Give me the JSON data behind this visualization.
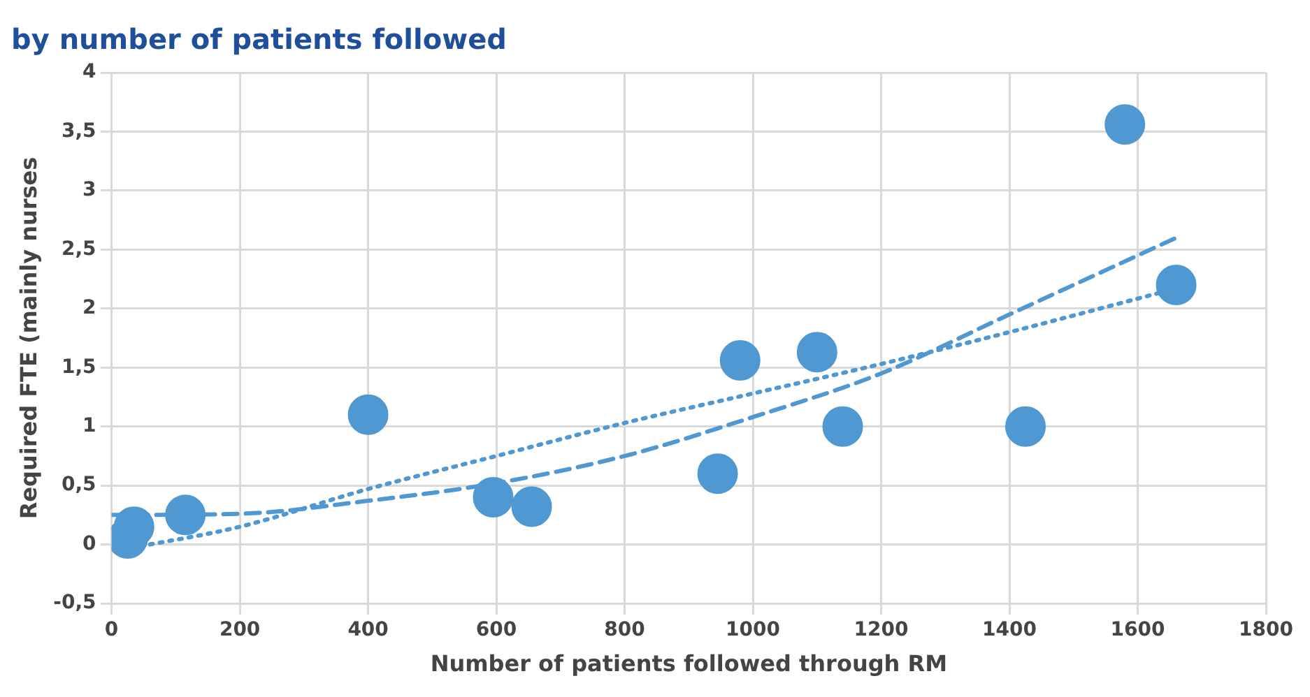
{
  "chart_data": {
    "type": "scatter",
    "title": "by number of patients followed",
    "xlabel": "Number of patients followed through RM",
    "ylabel": "Required FTE (mainly nurses",
    "xlim": [
      0,
      1800
    ],
    "xticks": [
      0,
      200,
      400,
      600,
      800,
      1000,
      1200,
      1400,
      1600,
      1800
    ],
    "ylim": [
      -0.5,
      4
    ],
    "yticks": [
      {
        "value": -0.5,
        "label": "-0,5"
      },
      0,
      {
        "value": 0.5,
        "label": "0,5"
      },
      1,
      {
        "value": 1.5,
        "label": "1,5"
      },
      2,
      {
        "value": 2.5,
        "label": "2,5"
      },
      3,
      {
        "value": 3.5,
        "label": "3,5"
      },
      4
    ],
    "grid": true,
    "legend": false,
    "series": [
      {
        "color": "#4f98d2",
        "marker": "circle",
        "x": [
          25,
          35,
          115,
          400,
          595,
          655,
          945,
          980,
          1100,
          1140,
          1425,
          1580,
          1660
        ],
        "values": [
          0.05,
          0.15,
          0.25,
          1.1,
          0.4,
          0.32,
          0.6,
          1.56,
          1.63,
          1.0,
          1.0,
          3.56,
          2.2
        ]
      },
      {
        "type": "line",
        "color": "#4f98d2",
        "line_style": "dashed",
        "marker": "none",
        "x": [
          0,
          200,
          400,
          600,
          800,
          1000,
          1200,
          1400,
          1660
        ],
        "values": [
          0.25,
          0.26,
          0.37,
          0.52,
          0.75,
          1.08,
          1.45,
          1.95,
          2.6
        ]
      },
      {
        "type": "line",
        "color": "#4f98d2",
        "line_style": "dotted",
        "marker": "none",
        "x": [
          30,
          200,
          400,
          600,
          800,
          1000,
          1200,
          1400,
          1660
        ],
        "values": [
          -0.03,
          0.15,
          0.47,
          0.75,
          1.03,
          1.28,
          1.53,
          1.8,
          2.17
        ]
      }
    ]
  }
}
